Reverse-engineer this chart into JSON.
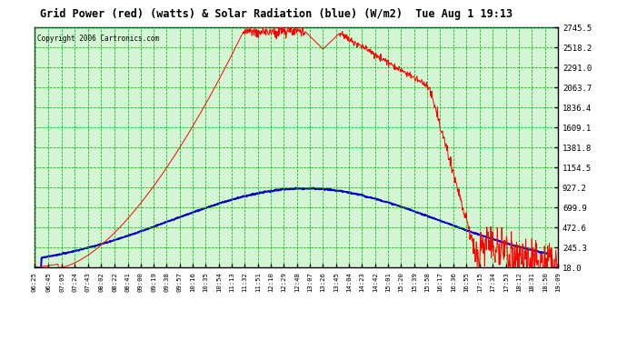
{
  "title": "Grid Power (red) (watts) & Solar Radiation (blue) (W/m2)  Tue Aug 1 19:13",
  "copyright": "Copyright 2006 Cartronics.com",
  "bg_color": "#ffffff",
  "plot_bg_color": "#d4f5d4",
  "grid_color": "#00bb00",
  "red_color": "#ff0000",
  "blue_color": "#0000cc",
  "ytick_labels": [
    18.0,
    245.3,
    472.6,
    699.9,
    927.2,
    1154.5,
    1381.8,
    1609.1,
    1836.4,
    2063.7,
    2291.0,
    2518.2,
    2745.5
  ],
  "xtick_labels": [
    "06:25",
    "06:45",
    "07:05",
    "07:24",
    "07:43",
    "08:02",
    "08:22",
    "08:41",
    "09:00",
    "09:19",
    "09:38",
    "09:57",
    "10:16",
    "10:35",
    "10:54",
    "11:13",
    "11:32",
    "11:51",
    "12:10",
    "12:29",
    "12:48",
    "13:07",
    "13:26",
    "13:45",
    "14:04",
    "14:23",
    "14:42",
    "15:01",
    "15:20",
    "15:39",
    "15:58",
    "16:17",
    "16:36",
    "16:55",
    "17:15",
    "17:34",
    "17:53",
    "18:12",
    "18:31",
    "18:50",
    "19:09"
  ],
  "ymin": 18.0,
  "ymax": 2745.5,
  "n_points": 1200
}
